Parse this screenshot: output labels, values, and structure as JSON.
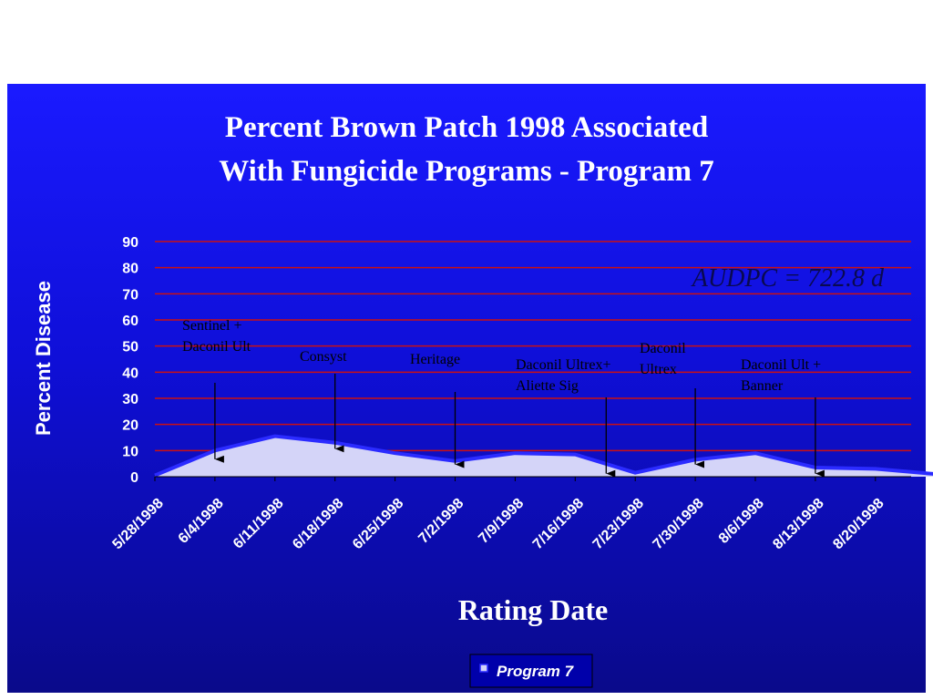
{
  "title_line1": "Percent Brown Patch 1998 Associated",
  "title_line2": "With Fungicide Programs - Program 7",
  "colors": {
    "slide_top": "#1a1aff",
    "slide_bottom": "#0a0a8a",
    "gridline": "#cc1111",
    "area_fill": "#d4d4f8",
    "area_outline": "#2b2bff",
    "text": "#ffffff",
    "annotation_text": "#000000"
  },
  "chart_data": {
    "type": "area",
    "title": "Percent Brown Patch 1998 Associated With Fungicide Programs - Program 7",
    "xlabel": "Rating Date",
    "ylabel": "Percent Disease",
    "ylim": [
      0,
      90
    ],
    "yticks": [
      0,
      10,
      20,
      30,
      40,
      50,
      60,
      70,
      80,
      90
    ],
    "grid": true,
    "legend": "bottom-center",
    "x_tick_labels": [
      "5/28/1998",
      "6/4/1998",
      "6/11/1998",
      "6/18/1998",
      "6/25/1998",
      "7/2/1998",
      "7/9/1998",
      "7/16/1998",
      "7/23/1998",
      "7/30/1998",
      "8/6/1998",
      "8/13/1998",
      "8/20/1998"
    ],
    "series": [
      {
        "name": "Program 7",
        "points": [
          {
            "x": "5/28/1998",
            "y": 0.5
          },
          {
            "x": "6/4/1998",
            "y": 10
          },
          {
            "x": "6/11/1998",
            "y": 15.5
          },
          {
            "x": "6/18/1998",
            "y": 13
          },
          {
            "x": "6/25/1998",
            "y": 9
          },
          {
            "x": "7/2/1998",
            "y": 6
          },
          {
            "x": "7/9/1998",
            "y": 9
          },
          {
            "x": "7/16/1998",
            "y": 8.5
          },
          {
            "x": "7/23/1998",
            "y": 1.5
          },
          {
            "x": "7/30/1998",
            "y": 6.5
          },
          {
            "x": "8/6/1998",
            "y": 9
          },
          {
            "x": "8/13/1998",
            "y": 3.5
          },
          {
            "x": "8/20/1998",
            "y": 3
          },
          {
            "x": "8/27/1998",
            "y": 1
          }
        ]
      }
    ],
    "annotations": [
      {
        "lines": [
          "Sentinel +",
          "Daconil Ult"
        ],
        "date": "6/4/1998",
        "arrow_to": 6
      },
      {
        "lines": [
          "Consyst"
        ],
        "date": "6/18/1998",
        "arrow_to": 10
      },
      {
        "lines": [
          "Heritage"
        ],
        "date": "7/2/1998",
        "arrow_to": 4
      },
      {
        "lines": [
          "Daconil Ultrex+",
          "Aliette Sig"
        ],
        "date": "7/16/1998",
        "arrow_to": 0.5
      },
      {
        "lines": [
          "Daconil",
          "Ultrex"
        ],
        "date": "7/30/1998",
        "arrow_to": 4
      },
      {
        "lines": [
          "Daconil Ult +",
          "Banner"
        ],
        "date": "8/13/1998",
        "arrow_to": 0.5
      }
    ],
    "audpc_label": "AUDPC = 722.8 d"
  }
}
